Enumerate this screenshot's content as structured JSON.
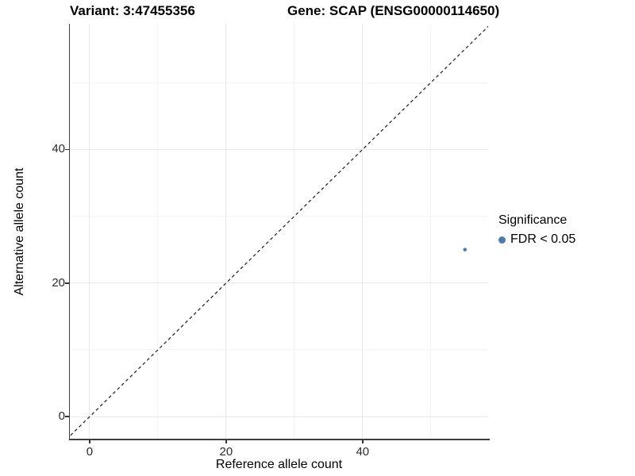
{
  "header": {
    "variant_title": "Variant: 3:47455356",
    "gene_title": "Gene: SCAP (ENSG00000114650)"
  },
  "axes": {
    "x_title": "Reference allele count",
    "y_title": "Alternative allele count"
  },
  "legend": {
    "title": "Significance",
    "items": [
      {
        "label": "FDR < 0.05",
        "color": "#4f7cac"
      }
    ]
  },
  "colors": {
    "point": "#4f7cac",
    "axis_line": "#3f3f3f",
    "tick_text": "#2b2b2b",
    "grid_major": "#e8e8e8",
    "grid_minor": "#f3f3f3",
    "identity_line": "#1a1a1a",
    "background": "#ffffff"
  },
  "chart_data": {
    "type": "scatter",
    "title_left": "Variant: 3:47455356",
    "title_right": "Gene: SCAP (ENSG00000114650)",
    "xlabel": "Reference allele count",
    "ylabel": "Alternative allele count",
    "xlim": [
      -2.9,
      58.4
    ],
    "ylim": [
      -3.3,
      58.8
    ],
    "x_ticks": [
      0,
      20,
      40
    ],
    "y_ticks": [
      0,
      20,
      40
    ],
    "x_minor_ticks": [
      10,
      30,
      50
    ],
    "y_minor_ticks": [
      10,
      30,
      50
    ],
    "grid": true,
    "legend_position": "right",
    "series": [
      {
        "name": "FDR < 0.05",
        "color": "#4f7cac",
        "points": [
          {
            "x": 55,
            "y": 25
          }
        ]
      }
    ],
    "reference_line": {
      "type": "identity",
      "equation": "y = x",
      "style": "dashed",
      "color": "#1a1a1a"
    }
  }
}
